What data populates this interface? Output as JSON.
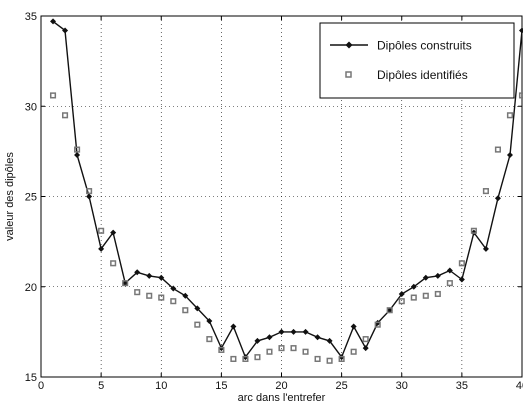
{
  "chart_data": {
    "type": "line",
    "xlabel": "arc dans l'entrefer",
    "ylabel": "valeur des dipôles",
    "xlim": [
      0,
      40
    ],
    "ylim": [
      15,
      35
    ],
    "xticks": [
      0,
      5,
      10,
      15,
      20,
      25,
      30,
      35,
      40
    ],
    "yticks": [
      15,
      20,
      25,
      30,
      35
    ],
    "grid": "dashed",
    "legend_position": "top-right",
    "series": [
      {
        "name": "Dipôles construits",
        "style": "line-diamond",
        "color": "#111111",
        "x": [
          1,
          2,
          3,
          4,
          5,
          6,
          7,
          8,
          9,
          10,
          11,
          12,
          13,
          14,
          15,
          16,
          17,
          18,
          19,
          20,
          21,
          22,
          23,
          24,
          25,
          26,
          27,
          28,
          29,
          30,
          31,
          32,
          33,
          34,
          35,
          36,
          37,
          38,
          39,
          40
        ],
        "y": [
          34.7,
          34.2,
          27.3,
          25.0,
          22.1,
          23.0,
          20.2,
          20.8,
          20.6,
          20.5,
          19.9,
          19.5,
          18.8,
          18.1,
          16.6,
          17.8,
          16.1,
          17.0,
          17.2,
          17.5,
          17.5,
          17.5,
          17.2,
          17.0,
          16.1,
          17.8,
          16.6,
          18.0,
          18.7,
          19.6,
          20.0,
          20.5,
          20.6,
          20.9,
          20.4,
          23.0,
          22.1,
          24.9,
          27.3,
          34.2
        ]
      },
      {
        "name": "Dipôles identifiés",
        "style": "square-marker",
        "color": "#777777",
        "x": [
          1,
          2,
          3,
          4,
          5,
          6,
          7,
          8,
          9,
          10,
          11,
          12,
          13,
          14,
          15,
          16,
          17,
          18,
          19,
          20,
          21,
          22,
          23,
          24,
          25,
          26,
          27,
          28,
          29,
          30,
          31,
          32,
          33,
          34,
          35,
          36,
          37,
          38,
          39,
          40
        ],
        "y": [
          30.6,
          29.5,
          27.6,
          25.3,
          23.1,
          21.3,
          20.2,
          19.7,
          19.5,
          19.4,
          19.2,
          18.7,
          17.9,
          17.1,
          16.5,
          16.0,
          16.0,
          16.1,
          16.4,
          16.6,
          16.6,
          16.4,
          16.0,
          15.9,
          16.0,
          16.4,
          17.1,
          17.9,
          18.7,
          19.2,
          19.4,
          19.5,
          19.6,
          20.2,
          21.3,
          23.1,
          25.3,
          27.6,
          29.5,
          30.6
        ]
      }
    ]
  }
}
